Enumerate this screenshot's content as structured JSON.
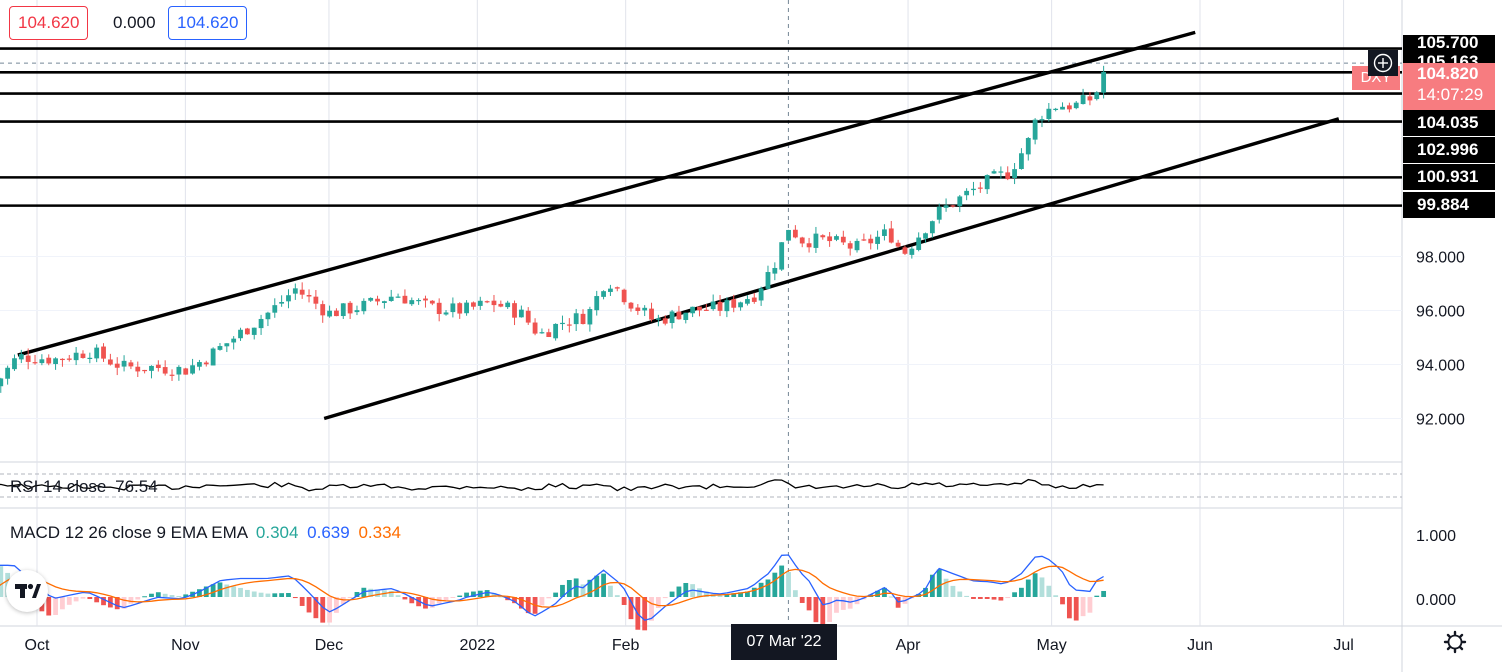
{
  "header": {
    "bid": "104.620",
    "spread": "0.000",
    "ask": "104.620"
  },
  "symbol_tag": "DXY",
  "price_tags": {
    "top_line": "105.700",
    "crosshair": "105.163",
    "last_price": "104.820",
    "countdown": "14:07:29",
    "levels": [
      "104.035",
      "102.996",
      "100.931",
      "99.884"
    ]
  },
  "time_tag": "07 Mar '22",
  "rsi": {
    "label": "RSI 14 close",
    "value": "76.54"
  },
  "macd": {
    "label": "MACD 12 26 close 9 EMA EMA",
    "hist": "0.304",
    "macd": "0.639",
    "signal": "0.334"
  },
  "colors": {
    "up": "#26a69a",
    "down": "#ef5350",
    "macd_line": "#2962ff",
    "signal_line": "#ff6d00",
    "accent_blue": "#2962ff",
    "accent_red": "#f23645"
  },
  "icons": [
    "plus-circle-icon",
    "tradingview-logo-icon",
    "settings-gear-icon"
  ],
  "chart_data": {
    "type": "candlestick",
    "title": "",
    "grid": true,
    "y_axis": {
      "ticks": [
        92.0,
        94.0,
        96.0,
        98.0
      ],
      "tick_labels": [
        "92.000",
        "94.000",
        "96.000",
        "98.000"
      ],
      "range": [
        90.5,
        106.5
      ]
    },
    "x_axis": {
      "tick_labels": [
        "Oct",
        "Nov",
        "Dec",
        "2022",
        "Feb",
        "Apr",
        "May",
        "Jun",
        "Jul"
      ],
      "ticks": [
        "2021-10-01",
        "2021-11-01",
        "2021-12-01",
        "2022-01-01",
        "2022-02-01",
        "2022-04-01",
        "2022-05-01",
        "2022-06-01",
        "2022-07-01"
      ]
    },
    "horizontal_levels": [
      105.7,
      104.82,
      104.035,
      102.996,
      100.931,
      99.884
    ],
    "channel_lines": [
      {
        "from": [
          "2021-09-27",
          94.35
        ],
        "to": [
          "2022-05-31",
          106.3
        ]
      },
      {
        "from": [
          "2021-11-30",
          92.0
        ],
        "to": [
          "2022-06-30",
          103.1
        ]
      }
    ],
    "price_path": [
      [
        "2021-09-22",
        93.2
      ],
      [
        "2021-09-27",
        94.3
      ],
      [
        "2021-10-05",
        94.2
      ],
      [
        "2021-10-12",
        94.5
      ],
      [
        "2021-10-19",
        93.9
      ],
      [
        "2021-10-26",
        93.9
      ],
      [
        "2021-11-01",
        93.8
      ],
      [
        "2021-11-05",
        94.2
      ],
      [
        "2021-11-12",
        95.1
      ],
      [
        "2021-11-19",
        96.0
      ],
      [
        "2021-11-24",
        96.8
      ],
      [
        "2021-12-01",
        95.9
      ],
      [
        "2021-12-09",
        96.2
      ],
      [
        "2021-12-15",
        96.6
      ],
      [
        "2021-12-22",
        96.1
      ],
      [
        "2021-12-29",
        96.0
      ],
      [
        "2022-01-04",
        96.3
      ],
      [
        "2022-01-10",
        95.9
      ],
      [
        "2022-01-14",
        95.1
      ],
      [
        "2022-01-19",
        95.6
      ],
      [
        "2022-01-24",
        95.8
      ],
      [
        "2022-01-28",
        97.2
      ],
      [
        "2022-02-02",
        96.3
      ],
      [
        "2022-02-07",
        95.6
      ],
      [
        "2022-02-14",
        96.0
      ],
      [
        "2022-02-21",
        96.1
      ],
      [
        "2022-02-28",
        96.6
      ],
      [
        "2022-03-04",
        97.7
      ],
      [
        "2022-03-07",
        99.1
      ],
      [
        "2022-03-10",
        98.6
      ],
      [
        "2022-03-15",
        98.6
      ],
      [
        "2022-03-21",
        98.3
      ],
      [
        "2022-03-28",
        98.9
      ],
      [
        "2022-03-31",
        98.1
      ],
      [
        "2022-04-07",
        99.6
      ],
      [
        "2022-04-14",
        100.4
      ],
      [
        "2022-04-19",
        100.9
      ],
      [
        "2022-04-22",
        101.1
      ],
      [
        "2022-04-26",
        102.2
      ],
      [
        "2022-04-28",
        103.2
      ],
      [
        "2022-05-02",
        103.6
      ],
      [
        "2022-05-06",
        103.6
      ],
      [
        "2022-05-10",
        103.9
      ],
      [
        "2022-05-12",
        104.9
      ],
      [
        "2022-05-13",
        104.7
      ]
    ],
    "rsi_latest": 76.54,
    "macd_latest": {
      "histogram": 0.304,
      "macd": 0.639,
      "signal": 0.334
    }
  }
}
